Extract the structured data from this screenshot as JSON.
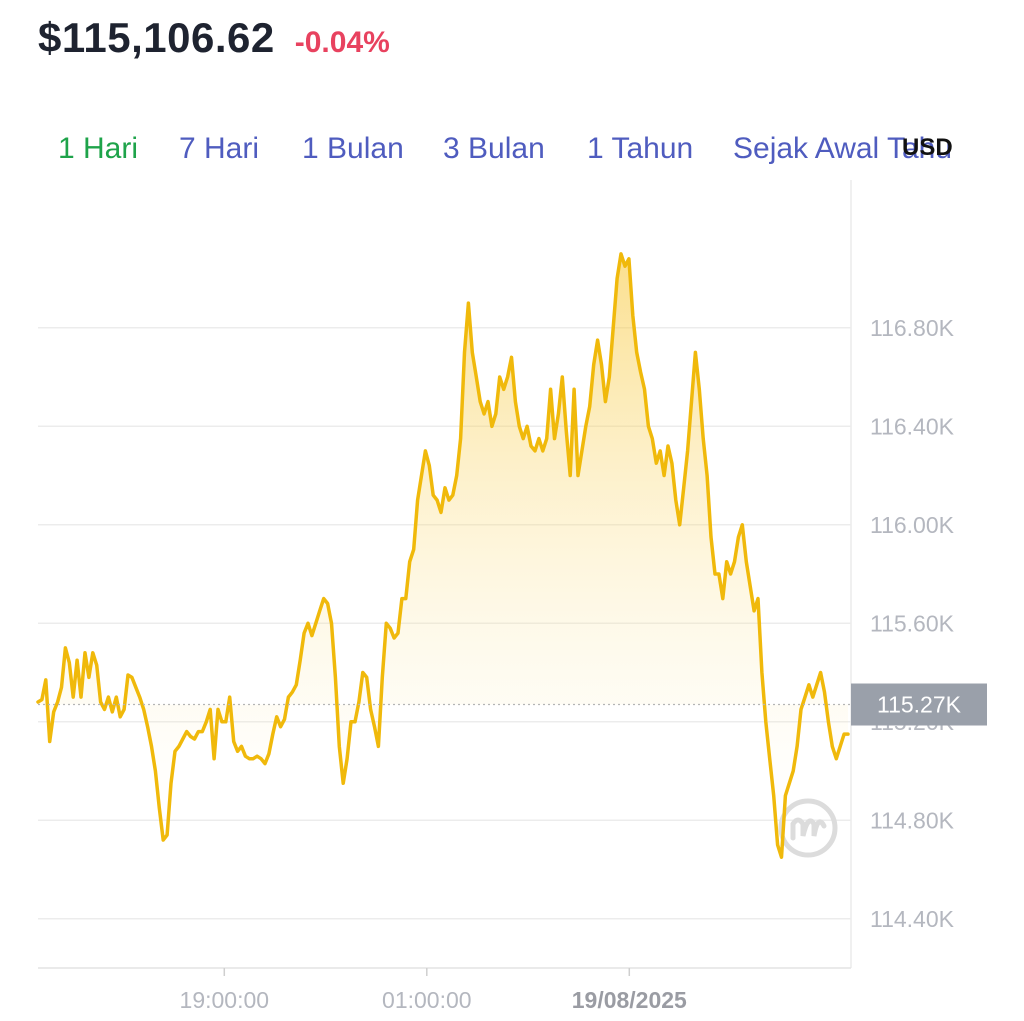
{
  "header": {
    "price": "$115,106.62",
    "change": "-0.04%",
    "change_color": "#e8425f"
  },
  "tabs": [
    {
      "label": "1 Hari",
      "active": true
    },
    {
      "label": "7 Hari",
      "active": false
    },
    {
      "label": "1 Bulan",
      "active": false
    },
    {
      "label": "3 Bulan",
      "active": false
    },
    {
      "label": "1 Tahun",
      "active": false
    },
    {
      "label": "Sejak Awal Tahu",
      "active": false
    }
  ],
  "colors": {
    "tab_active": "#1ea34a",
    "tab_inactive": "#4f5cbf",
    "line": "#f0b90b",
    "grid": "#ececec",
    "current_label_bg": "#9aa0aa",
    "watermark": "#dcdcdc"
  },
  "currency": "USD",
  "watermark_icon": "coinmarketcap-logo-icon",
  "chart_data": {
    "type": "area",
    "ylim": [
      114200,
      117400
    ],
    "y_ticks": [
      116800,
      116400,
      116000,
      115600,
      115200,
      114800,
      114400
    ],
    "y_tick_labels": [
      "116.80K",
      "116.40K",
      "116.00K",
      "115.60K",
      "115.20K",
      "114.80K",
      "114.40K"
    ],
    "x_ticks": [
      {
        "label": "19:00:00",
        "bold": false
      },
      {
        "label": "01:00:00",
        "bold": false
      },
      {
        "label": "19/08/2025",
        "bold": true
      }
    ],
    "current_value": 115270,
    "current_label": "115.27K",
    "series": [
      {
        "values": [
          115280,
          115290,
          115370,
          115120,
          115240,
          115280,
          115340,
          115500,
          115440,
          115300,
          115450,
          115300,
          115480,
          115380,
          115480,
          115430,
          115280,
          115250,
          115300,
          115240,
          115300,
          115220,
          115250,
          115390,
          115380,
          115340,
          115300,
          115250,
          115180,
          115100,
          115000,
          114850,
          114720,
          114740,
          114950,
          115080,
          115100,
          115130,
          115160,
          115140,
          115130,
          115160,
          115160,
          115200,
          115250,
          115050,
          115250,
          115200,
          115200,
          115300,
          115120,
          115080,
          115100,
          115060,
          115050,
          115050,
          115060,
          115050,
          115030,
          115070,
          115150,
          115220,
          115180,
          115210,
          115300,
          115320,
          115350,
          115450,
          115560,
          115600,
          115550,
          115600,
          115650,
          115700,
          115680,
          115600,
          115380,
          115100,
          114950,
          115050,
          115200,
          115200,
          115280,
          115400,
          115380,
          115250,
          115180,
          115100,
          115380,
          115600,
          115580,
          115540,
          115560,
          115700,
          115700,
          115850,
          115900,
          116100,
          116200,
          116300,
          116240,
          116120,
          116100,
          116050,
          116150,
          116100,
          116120,
          116200,
          116350,
          116700,
          116900,
          116700,
          116600,
          116500,
          116450,
          116500,
          116400,
          116450,
          116600,
          116550,
          116600,
          116680,
          116500,
          116400,
          116350,
          116400,
          116320,
          116300,
          116350,
          116300,
          116350,
          116550,
          116350,
          116450,
          116600,
          116380,
          116200,
          116550,
          116200,
          116300,
          116400,
          116480,
          116650,
          116750,
          116650,
          116500,
          116600,
          116800,
          117000,
          117100,
          117050,
          117080,
          116850,
          116700,
          116620,
          116550,
          116400,
          116350,
          116250,
          116300,
          116200,
          116320,
          116250,
          116100,
          116000,
          116150,
          116300,
          116500,
          116700,
          116550,
          116350,
          116200,
          115950,
          115800,
          115800,
          115700,
          115850,
          115800,
          115850,
          115950,
          116000,
          115850,
          115750,
          115650,
          115700,
          115400,
          115200,
          115050,
          114900,
          114700,
          114650,
          114900,
          114950,
          115000,
          115100,
          115250,
          115300,
          115350,
          115300,
          115350,
          115400,
          115320,
          115200,
          115100,
          115050,
          115100,
          115150,
          115150
        ]
      }
    ]
  }
}
